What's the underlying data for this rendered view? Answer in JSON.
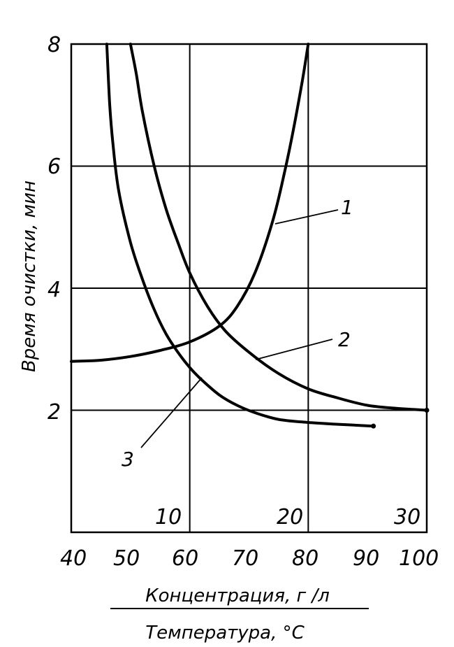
{
  "chart_data": {
    "type": "line",
    "ylabel": "Время очистки, мин",
    "xlabel_top": "Концентрация, г /л",
    "xlabel_bottom": "Температура, °C",
    "ylim": [
      0,
      8
    ],
    "xlim_temperature": [
      40,
      100
    ],
    "y_ticks": [
      "2",
      "4",
      "6",
      "8"
    ],
    "temperature_ticks": [
      "40",
      "50",
      "60",
      "70",
      "80",
      "90",
      "100"
    ],
    "concentration_ticks": [
      "10",
      "20",
      "30"
    ],
    "grid": true,
    "series": [
      {
        "name": "1",
        "x": [
          40,
          45,
          50,
          55,
          60,
          65,
          68,
          71,
          74,
          76,
          77.5,
          79,
          80
        ],
        "y": [
          2.8,
          2.82,
          2.88,
          2.98,
          3.12,
          3.38,
          3.7,
          4.25,
          5.1,
          5.9,
          6.6,
          7.4,
          8.0
        ]
      },
      {
        "name": "2",
        "x": [
          50,
          51,
          52,
          54,
          56,
          58,
          60,
          63,
          66,
          70,
          75,
          80,
          85,
          90,
          95,
          100
        ],
        "y": [
          8.0,
          7.5,
          6.9,
          6.0,
          5.3,
          4.75,
          4.25,
          3.7,
          3.3,
          2.95,
          2.6,
          2.35,
          2.2,
          2.08,
          2.03,
          2.0
        ]
      },
      {
        "name": "3",
        "x": [
          46,
          46.5,
          47,
          48,
          50,
          52,
          54,
          56,
          58,
          60,
          62,
          65,
          68,
          71,
          75,
          80,
          85,
          91
        ],
        "y": [
          8.0,
          7.0,
          6.4,
          5.6,
          4.75,
          4.15,
          3.65,
          3.25,
          2.95,
          2.7,
          2.5,
          2.25,
          2.08,
          1.96,
          1.85,
          1.8,
          1.77,
          1.74
        ]
      }
    ]
  }
}
